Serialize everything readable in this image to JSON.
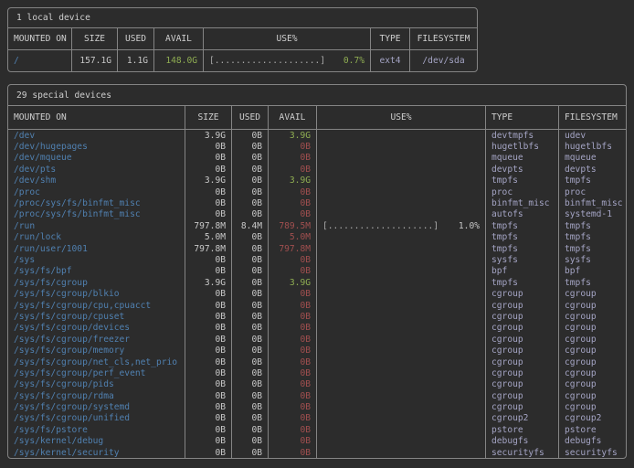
{
  "colors": {
    "bg": "#2c2c2c",
    "border": "#848484",
    "text": "#c8c8c8",
    "header_text": "#cfcfcf",
    "path_blue": "#5080b0",
    "ok_green": "#8fad52",
    "low_red": "#a14f4f",
    "fs_lavender": "#a4a4c4",
    "bar_gray": "#aaaaaa"
  },
  "local_table": {
    "title": "1 local device",
    "headers": [
      "MOUNTED ON",
      "SIZE",
      "USED",
      "AVAIL",
      "USE%",
      "TYPE",
      "FILESYSTEM"
    ],
    "rows": [
      {
        "mounted_on": "/",
        "size": "157.1G",
        "used": "1.1G",
        "avail": "148.0G",
        "avail_state": "ok",
        "bar": "[....................]",
        "pct": "0.7%",
        "pct_state": "ok",
        "type": "ext4",
        "filesystem": "/dev/sda"
      }
    ]
  },
  "special_table": {
    "title": "29 special devices",
    "headers": [
      "MOUNTED ON",
      "SIZE",
      "USED",
      "AVAIL",
      "USE%",
      "TYPE",
      "FILESYSTEM"
    ],
    "rows": [
      {
        "mounted_on": "/dev",
        "size": "3.9G",
        "used": "0B",
        "avail": "3.9G",
        "avail_state": "ok",
        "type": "devtmpfs",
        "filesystem": "udev"
      },
      {
        "mounted_on": "/dev/hugepages",
        "size": "0B",
        "used": "0B",
        "avail": "0B",
        "avail_state": "low",
        "type": "hugetlbfs",
        "filesystem": "hugetlbfs"
      },
      {
        "mounted_on": "/dev/mqueue",
        "size": "0B",
        "used": "0B",
        "avail": "0B",
        "avail_state": "low",
        "type": "mqueue",
        "filesystem": "mqueue"
      },
      {
        "mounted_on": "/dev/pts",
        "size": "0B",
        "used": "0B",
        "avail": "0B",
        "avail_state": "low",
        "type": "devpts",
        "filesystem": "devpts"
      },
      {
        "mounted_on": "/dev/shm",
        "size": "3.9G",
        "used": "0B",
        "avail": "3.9G",
        "avail_state": "ok",
        "type": "tmpfs",
        "filesystem": "tmpfs"
      },
      {
        "mounted_on": "/proc",
        "size": "0B",
        "used": "0B",
        "avail": "0B",
        "avail_state": "low",
        "type": "proc",
        "filesystem": "proc"
      },
      {
        "mounted_on": "/proc/sys/fs/binfmt_misc",
        "size": "0B",
        "used": "0B",
        "avail": "0B",
        "avail_state": "low",
        "type": "binfmt_misc",
        "filesystem": "binfmt_misc"
      },
      {
        "mounted_on": "/proc/sys/fs/binfmt_misc",
        "size": "0B",
        "used": "0B",
        "avail": "0B",
        "avail_state": "low",
        "type": "autofs",
        "filesystem": "systemd-1"
      },
      {
        "mounted_on": "/run",
        "size": "797.8M",
        "used": "8.4M",
        "avail": "789.5M",
        "avail_state": "low",
        "bar": "[....................]",
        "pct": "1.0%",
        "pct_state": "plain",
        "type": "tmpfs",
        "filesystem": "tmpfs"
      },
      {
        "mounted_on": "/run/lock",
        "size": "5.0M",
        "used": "0B",
        "avail": "5.0M",
        "avail_state": "low",
        "type": "tmpfs",
        "filesystem": "tmpfs"
      },
      {
        "mounted_on": "/run/user/1001",
        "size": "797.8M",
        "used": "0B",
        "avail": "797.8M",
        "avail_state": "low",
        "type": "tmpfs",
        "filesystem": "tmpfs"
      },
      {
        "mounted_on": "/sys",
        "size": "0B",
        "used": "0B",
        "avail": "0B",
        "avail_state": "low",
        "type": "sysfs",
        "filesystem": "sysfs"
      },
      {
        "mounted_on": "/sys/fs/bpf",
        "size": "0B",
        "used": "0B",
        "avail": "0B",
        "avail_state": "low",
        "type": "bpf",
        "filesystem": "bpf"
      },
      {
        "mounted_on": "/sys/fs/cgroup",
        "size": "3.9G",
        "used": "0B",
        "avail": "3.9G",
        "avail_state": "ok",
        "type": "tmpfs",
        "filesystem": "tmpfs"
      },
      {
        "mounted_on": "/sys/fs/cgroup/blkio",
        "size": "0B",
        "used": "0B",
        "avail": "0B",
        "avail_state": "low",
        "type": "cgroup",
        "filesystem": "cgroup"
      },
      {
        "mounted_on": "/sys/fs/cgroup/cpu,cpuacct",
        "size": "0B",
        "used": "0B",
        "avail": "0B",
        "avail_state": "low",
        "type": "cgroup",
        "filesystem": "cgroup"
      },
      {
        "mounted_on": "/sys/fs/cgroup/cpuset",
        "size": "0B",
        "used": "0B",
        "avail": "0B",
        "avail_state": "low",
        "type": "cgroup",
        "filesystem": "cgroup"
      },
      {
        "mounted_on": "/sys/fs/cgroup/devices",
        "size": "0B",
        "used": "0B",
        "avail": "0B",
        "avail_state": "low",
        "type": "cgroup",
        "filesystem": "cgroup"
      },
      {
        "mounted_on": "/sys/fs/cgroup/freezer",
        "size": "0B",
        "used": "0B",
        "avail": "0B",
        "avail_state": "low",
        "type": "cgroup",
        "filesystem": "cgroup"
      },
      {
        "mounted_on": "/sys/fs/cgroup/memory",
        "size": "0B",
        "used": "0B",
        "avail": "0B",
        "avail_state": "low",
        "type": "cgroup",
        "filesystem": "cgroup"
      },
      {
        "mounted_on": "/sys/fs/cgroup/net_cls,net_prio",
        "size": "0B",
        "used": "0B",
        "avail": "0B",
        "avail_state": "low",
        "type": "cgroup",
        "filesystem": "cgroup"
      },
      {
        "mounted_on": "/sys/fs/cgroup/perf_event",
        "size": "0B",
        "used": "0B",
        "avail": "0B",
        "avail_state": "low",
        "type": "cgroup",
        "filesystem": "cgroup"
      },
      {
        "mounted_on": "/sys/fs/cgroup/pids",
        "size": "0B",
        "used": "0B",
        "avail": "0B",
        "avail_state": "low",
        "type": "cgroup",
        "filesystem": "cgroup"
      },
      {
        "mounted_on": "/sys/fs/cgroup/rdma",
        "size": "0B",
        "used": "0B",
        "avail": "0B",
        "avail_state": "low",
        "type": "cgroup",
        "filesystem": "cgroup"
      },
      {
        "mounted_on": "/sys/fs/cgroup/systemd",
        "size": "0B",
        "used": "0B",
        "avail": "0B",
        "avail_state": "low",
        "type": "cgroup",
        "filesystem": "cgroup"
      },
      {
        "mounted_on": "/sys/fs/cgroup/unified",
        "size": "0B",
        "used": "0B",
        "avail": "0B",
        "avail_state": "low",
        "type": "cgroup2",
        "filesystem": "cgroup2"
      },
      {
        "mounted_on": "/sys/fs/pstore",
        "size": "0B",
        "used": "0B",
        "avail": "0B",
        "avail_state": "low",
        "type": "pstore",
        "filesystem": "pstore"
      },
      {
        "mounted_on": "/sys/kernel/debug",
        "size": "0B",
        "used": "0B",
        "avail": "0B",
        "avail_state": "low",
        "type": "debugfs",
        "filesystem": "debugfs"
      },
      {
        "mounted_on": "/sys/kernel/security",
        "size": "0B",
        "used": "0B",
        "avail": "0B",
        "avail_state": "low",
        "type": "securityfs",
        "filesystem": "securityfs"
      }
    ]
  }
}
